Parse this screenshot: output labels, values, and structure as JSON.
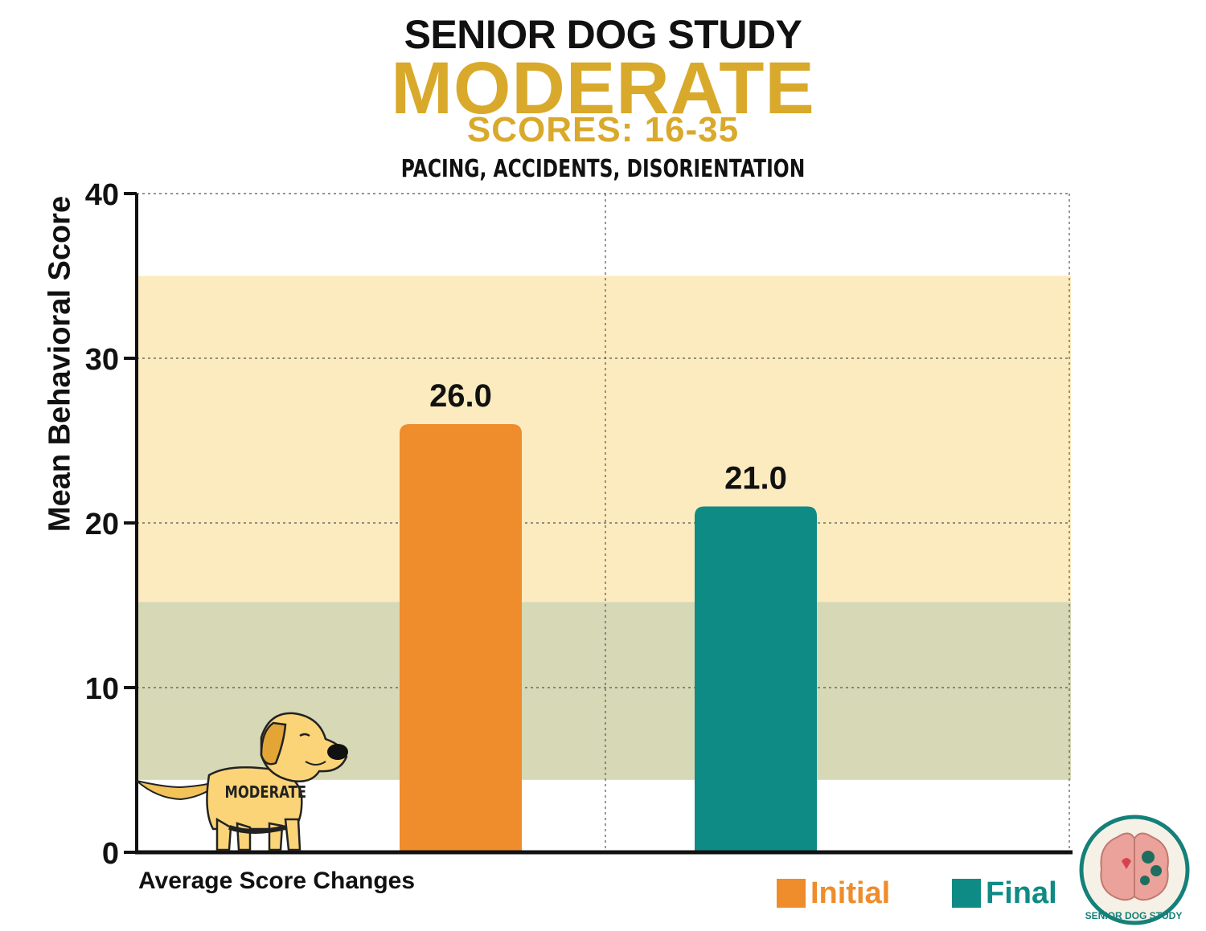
{
  "header": {
    "study": "SENIOR DOG STUDY",
    "level": "MODERATE",
    "range": "SCORES: 16-35",
    "symptoms": "PACING, ACCIDENTS, DISORIENTATION"
  },
  "chart_data": {
    "type": "bar",
    "ylabel": "Mean Behavioral Score",
    "xlabel": "Average Score Changes",
    "ylim": [
      0,
      40
    ],
    "yticks": [
      0,
      10,
      20,
      30,
      40
    ],
    "grid": true,
    "bands": [
      {
        "from": 4.4,
        "to": 15.2,
        "color": "#d6d8b6"
      },
      {
        "from": 15.2,
        "to": 35,
        "color": "#fcebbf"
      }
    ],
    "series": [
      {
        "name": "Initial",
        "value": 26.0,
        "label": "26.0",
        "color": "#ef8c2b"
      },
      {
        "name": "Final",
        "value": 21.0,
        "label": "21.0",
        "color": "#0e8b85"
      }
    ],
    "legend_position": "bottom-right"
  },
  "mascot": {
    "badge": "MODERATE",
    "icon": "golden-dog-icon"
  },
  "logo": {
    "text": "SENIOR DOG STUDY",
    "icon": "brain-dog-logo-icon"
  },
  "colors": {
    "accent": "#d9a92b",
    "initial": "#ef8c2b",
    "final": "#0e8b85"
  }
}
